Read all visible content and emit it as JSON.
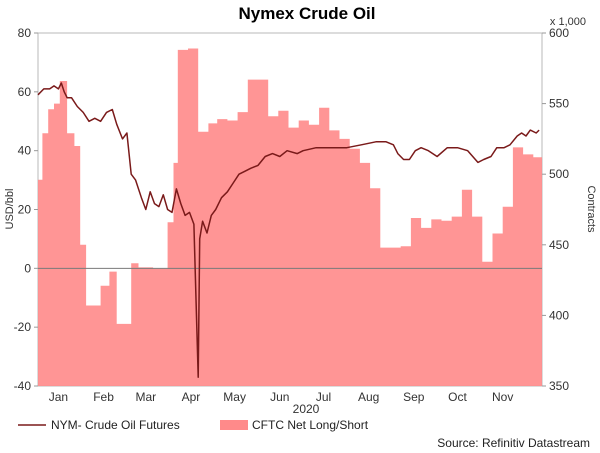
{
  "chart_data": {
    "type": "line",
    "title": "Nymex Crude Oil",
    "xlabel": "2020",
    "ylabel_left": "USD/bbl",
    "ylabel_right": "Contracts",
    "right_multiplier": "x 1,000",
    "source": "Source: Refinitiv Datastream",
    "x_range": [
      "2020-01-01",
      "2020-12-01"
    ],
    "left_ylim": [
      -40,
      80
    ],
    "right_ylim": [
      350,
      600
    ],
    "left_ticks": [
      "80",
      "60",
      "40",
      "20",
      "0",
      "-20",
      "-40"
    ],
    "left_tick_values": [
      80,
      60,
      40,
      20,
      0,
      -20,
      -40
    ],
    "right_ticks": [
      "600",
      "550",
      "500",
      "450",
      "400",
      "350"
    ],
    "right_tick_values": [
      600,
      550,
      500,
      450,
      400,
      350
    ],
    "month_labels": [
      {
        "label": "Jan",
        "date": "2020-01-15"
      },
      {
        "label": "Feb",
        "date": "2020-02-15"
      },
      {
        "label": "Mar",
        "date": "2020-03-15"
      },
      {
        "label": "Apr",
        "date": "2020-04-15"
      },
      {
        "label": "May",
        "date": "2020-05-15"
      },
      {
        "label": "Jun",
        "date": "2020-06-15"
      },
      {
        "label": "Jul",
        "date": "2020-07-15"
      },
      {
        "label": "Aug",
        "date": "2020-08-15"
      },
      {
        "label": "Sep",
        "date": "2020-09-15"
      },
      {
        "label": "Oct",
        "date": "2020-10-15"
      },
      {
        "label": "Nov",
        "date": "2020-11-15"
      }
    ],
    "zero_line": 0,
    "series": [
      {
        "name": "NYM- Crude Oil Futures",
        "type": "line",
        "axis": "left",
        "color": "#7a1a1a",
        "points": [
          [
            "2020-01-01",
            59
          ],
          [
            "2020-01-05",
            61
          ],
          [
            "2020-01-09",
            61
          ],
          [
            "2020-01-12",
            62
          ],
          [
            "2020-01-15",
            61
          ],
          [
            "2020-01-17",
            63
          ],
          [
            "2020-01-19",
            60
          ],
          [
            "2020-01-21",
            58
          ],
          [
            "2020-01-24",
            58
          ],
          [
            "2020-01-28",
            55
          ],
          [
            "2020-02-01",
            53
          ],
          [
            "2020-02-05",
            50
          ],
          [
            "2020-02-09",
            51
          ],
          [
            "2020-02-13",
            50
          ],
          [
            "2020-02-17",
            53
          ],
          [
            "2020-02-21",
            54
          ],
          [
            "2020-02-24",
            49
          ],
          [
            "2020-02-28",
            44
          ],
          [
            "2020-03-02",
            46
          ],
          [
            "2020-03-05",
            32
          ],
          [
            "2020-03-08",
            30
          ],
          [
            "2020-03-12",
            24
          ],
          [
            "2020-03-15",
            20
          ],
          [
            "2020-03-18",
            26
          ],
          [
            "2020-03-21",
            22
          ],
          [
            "2020-03-24",
            21
          ],
          [
            "2020-03-27",
            25
          ],
          [
            "2020-03-30",
            20
          ],
          [
            "2020-04-02",
            19
          ],
          [
            "2020-04-05",
            27
          ],
          [
            "2020-04-08",
            22
          ],
          [
            "2020-04-11",
            18
          ],
          [
            "2020-04-14",
            19
          ],
          [
            "2020-04-17",
            15
          ],
          [
            "2020-04-20",
            -37
          ],
          [
            "2020-04-21",
            10
          ],
          [
            "2020-04-23",
            16
          ],
          [
            "2020-04-26",
            12
          ],
          [
            "2020-04-29",
            18
          ],
          [
            "2020-05-02",
            20
          ],
          [
            "2020-05-06",
            24
          ],
          [
            "2020-05-10",
            26
          ],
          [
            "2020-05-14",
            29
          ],
          [
            "2020-05-18",
            32
          ],
          [
            "2020-05-22",
            33
          ],
          [
            "2020-05-26",
            34
          ],
          [
            "2020-05-31",
            35
          ],
          [
            "2020-06-05",
            38
          ],
          [
            "2020-06-10",
            39
          ],
          [
            "2020-06-15",
            38
          ],
          [
            "2020-06-20",
            40
          ],
          [
            "2020-06-27",
            39
          ],
          [
            "2020-07-01",
            40
          ],
          [
            "2020-07-10",
            41
          ],
          [
            "2020-07-20",
            41
          ],
          [
            "2020-07-31",
            41
          ],
          [
            "2020-08-10",
            42
          ],
          [
            "2020-08-20",
            43
          ],
          [
            "2020-08-27",
            43
          ],
          [
            "2020-09-01",
            42
          ],
          [
            "2020-09-04",
            39
          ],
          [
            "2020-09-08",
            37
          ],
          [
            "2020-09-12",
            37
          ],
          [
            "2020-09-16",
            40
          ],
          [
            "2020-09-20",
            41
          ],
          [
            "2020-09-25",
            40
          ],
          [
            "2020-10-01",
            38
          ],
          [
            "2020-10-08",
            41
          ],
          [
            "2020-10-15",
            41
          ],
          [
            "2020-10-22",
            40
          ],
          [
            "2020-10-29",
            36
          ],
          [
            "2020-11-02",
            37
          ],
          [
            "2020-11-07",
            38
          ],
          [
            "2020-11-11",
            41
          ],
          [
            "2020-11-16",
            41
          ],
          [
            "2020-11-20",
            42
          ],
          [
            "2020-11-25",
            45
          ],
          [
            "2020-11-28",
            46
          ],
          [
            "2020-12-01",
            45
          ],
          [
            "2020-12-04",
            47
          ],
          [
            "2020-12-08",
            46
          ],
          [
            "2020-12-10",
            47
          ]
        ]
      },
      {
        "name": "CFTC Net Long/Short",
        "type": "area",
        "axis": "right",
        "color": "#ff8a8a",
        "points": [
          [
            "2020-01-01",
            496
          ],
          [
            "2020-01-04",
            496
          ],
          [
            "2020-01-04",
            529
          ],
          [
            "2020-01-08",
            529
          ],
          [
            "2020-01-08",
            546
          ],
          [
            "2020-01-12",
            546
          ],
          [
            "2020-01-12",
            550
          ],
          [
            "2020-01-16",
            550
          ],
          [
            "2020-01-16",
            566
          ],
          [
            "2020-01-21",
            566
          ],
          [
            "2020-01-21",
            529
          ],
          [
            "2020-01-26",
            529
          ],
          [
            "2020-01-26",
            520
          ],
          [
            "2020-01-30",
            520
          ],
          [
            "2020-01-30",
            450
          ],
          [
            "2020-02-03",
            450
          ],
          [
            "2020-02-03",
            407
          ],
          [
            "2020-02-13",
            407
          ],
          [
            "2020-02-13",
            421
          ],
          [
            "2020-02-19",
            421
          ],
          [
            "2020-02-19",
            431
          ],
          [
            "2020-02-24",
            431
          ],
          [
            "2020-02-24",
            394
          ],
          [
            "2020-03-05",
            394
          ],
          [
            "2020-03-05",
            437
          ],
          [
            "2020-03-10",
            437
          ],
          [
            "2020-03-10",
            434
          ],
          [
            "2020-03-20",
            434
          ],
          [
            "2020-03-20",
            433
          ],
          [
            "2020-03-30",
            433
          ],
          [
            "2020-03-30",
            466
          ],
          [
            "2020-04-03",
            466
          ],
          [
            "2020-04-03",
            508
          ],
          [
            "2020-04-06",
            508
          ],
          [
            "2020-04-06",
            588
          ],
          [
            "2020-04-13",
            588
          ],
          [
            "2020-04-13",
            589
          ],
          [
            "2020-04-20",
            589
          ],
          [
            "2020-04-20",
            530
          ],
          [
            "2020-04-27",
            530
          ],
          [
            "2020-04-27",
            536
          ],
          [
            "2020-05-03",
            536
          ],
          [
            "2020-05-03",
            539
          ],
          [
            "2020-05-10",
            539
          ],
          [
            "2020-05-10",
            538
          ],
          [
            "2020-05-17",
            538
          ],
          [
            "2020-05-17",
            544
          ],
          [
            "2020-05-24",
            544
          ],
          [
            "2020-05-24",
            567
          ],
          [
            "2020-06-07",
            567
          ],
          [
            "2020-06-07",
            541
          ],
          [
            "2020-06-14",
            541
          ],
          [
            "2020-06-14",
            545
          ],
          [
            "2020-06-21",
            545
          ],
          [
            "2020-06-21",
            533
          ],
          [
            "2020-06-28",
            533
          ],
          [
            "2020-06-28",
            538
          ],
          [
            "2020-07-05",
            538
          ],
          [
            "2020-07-05",
            535
          ],
          [
            "2020-07-12",
            535
          ],
          [
            "2020-07-12",
            547
          ],
          [
            "2020-07-19",
            547
          ],
          [
            "2020-07-19",
            531
          ],
          [
            "2020-07-26",
            531
          ],
          [
            "2020-07-26",
            525
          ],
          [
            "2020-08-02",
            525
          ],
          [
            "2020-08-02",
            518
          ],
          [
            "2020-08-09",
            518
          ],
          [
            "2020-08-09",
            508
          ],
          [
            "2020-08-16",
            508
          ],
          [
            "2020-08-16",
            490
          ],
          [
            "2020-08-23",
            490
          ],
          [
            "2020-08-23",
            448
          ],
          [
            "2020-09-06",
            448
          ],
          [
            "2020-09-06",
            449
          ],
          [
            "2020-09-13",
            449
          ],
          [
            "2020-09-13",
            469
          ],
          [
            "2020-09-20",
            469
          ],
          [
            "2020-09-20",
            462
          ],
          [
            "2020-09-27",
            462
          ],
          [
            "2020-09-27",
            468
          ],
          [
            "2020-10-04",
            468
          ],
          [
            "2020-10-04",
            467
          ],
          [
            "2020-10-11",
            467
          ],
          [
            "2020-10-11",
            470
          ],
          [
            "2020-10-18",
            470
          ],
          [
            "2020-10-18",
            489
          ],
          [
            "2020-10-25",
            489
          ],
          [
            "2020-10-25",
            470
          ],
          [
            "2020-11-01",
            470
          ],
          [
            "2020-11-01",
            438
          ],
          [
            "2020-11-08",
            438
          ],
          [
            "2020-11-08",
            458
          ],
          [
            "2020-11-15",
            458
          ],
          [
            "2020-11-15",
            477
          ],
          [
            "2020-11-22",
            477
          ],
          [
            "2020-11-22",
            519
          ],
          [
            "2020-11-29",
            519
          ],
          [
            "2020-11-29",
            514
          ],
          [
            "2020-12-06",
            514
          ],
          [
            "2020-12-06",
            512
          ],
          [
            "2020-12-12",
            512
          ]
        ]
      }
    ],
    "legend_position": "bottom-left",
    "grid": false
  }
}
